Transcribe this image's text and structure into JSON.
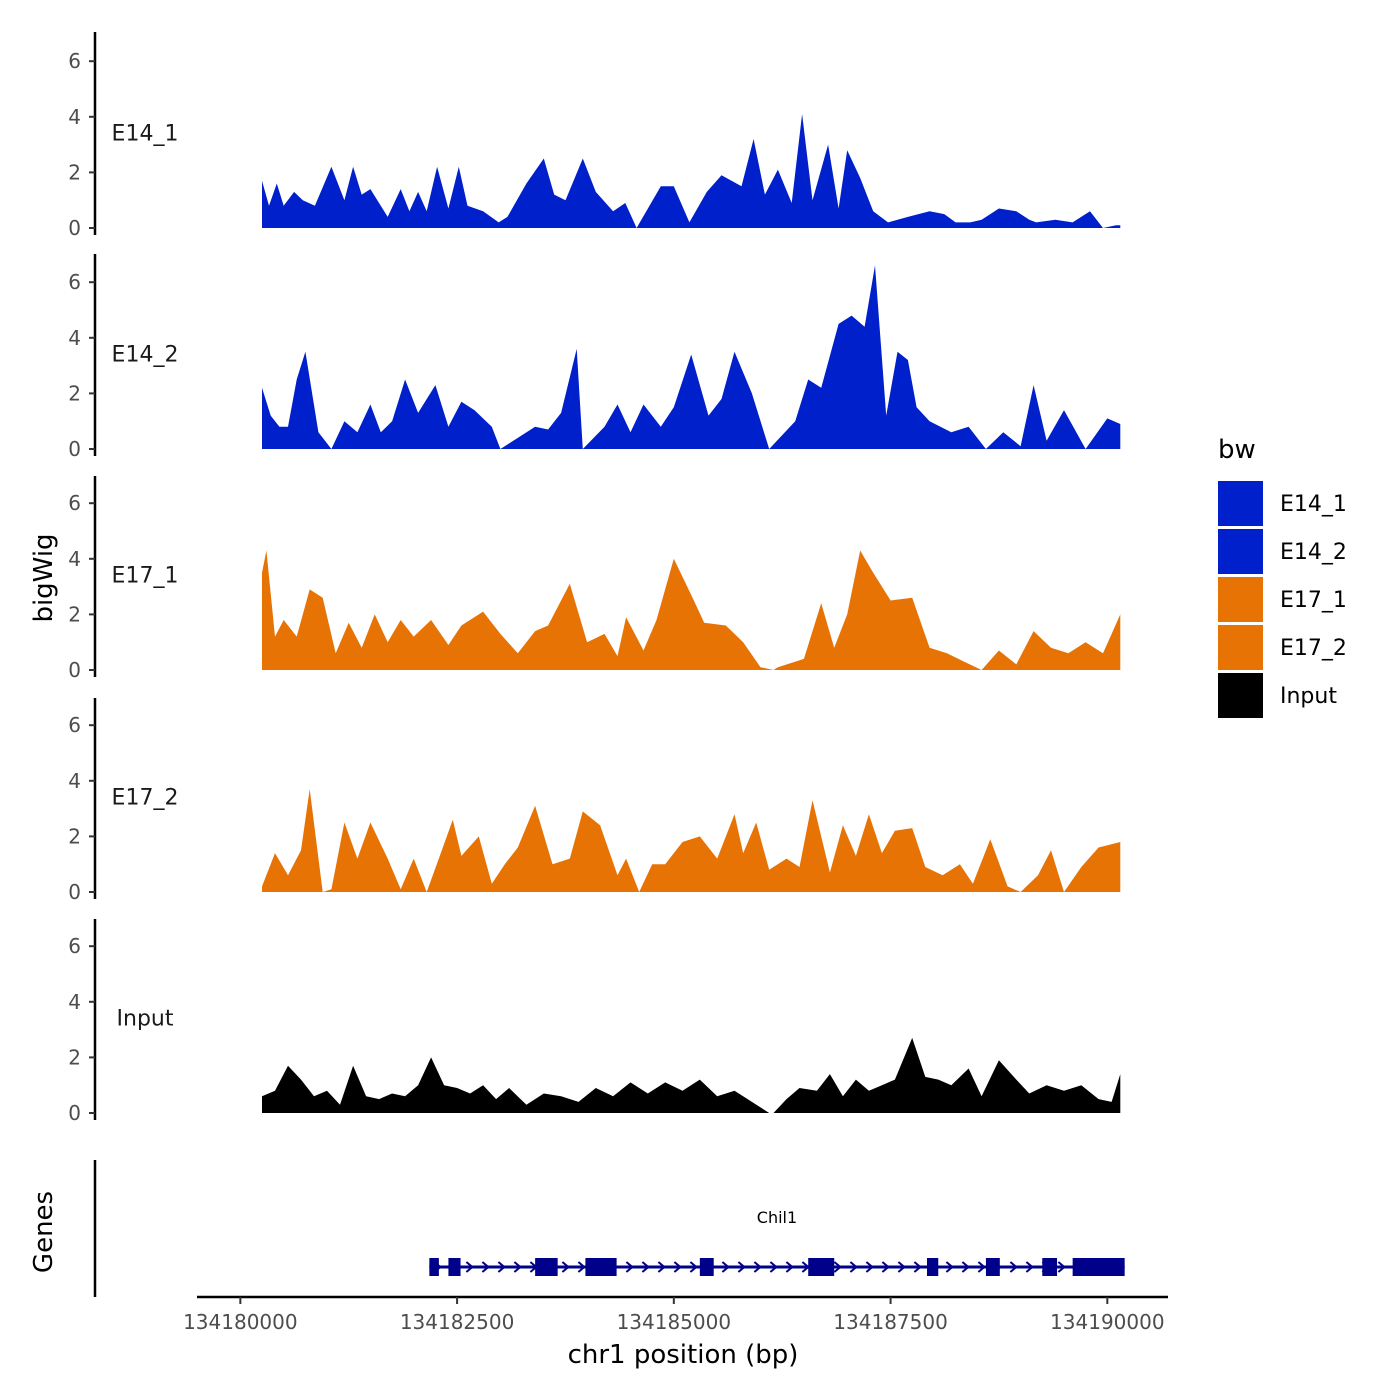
{
  "chart_data": {
    "type": "area",
    "chromosome": "chr1",
    "xlabel": "chr1 position (bp)",
    "ylabel": "bigWig",
    "genes_label": "Genes",
    "xlim": [
      134179500,
      134190700
    ],
    "ylim": [
      0,
      7
    ],
    "x_ticks": [
      "134180000",
      "134182500",
      "134185000",
      "134187500",
      "134190000"
    ],
    "y_ticks": [
      "0",
      "2",
      "4",
      "6"
    ],
    "legend": {
      "title": "bw",
      "items": [
        {
          "label": "E14_1",
          "color": "#0020CC"
        },
        {
          "label": "E14_2",
          "color": "#0020CC"
        },
        {
          "label": "E17_1",
          "color": "#E87305"
        },
        {
          "label": "E17_2",
          "color": "#E87305"
        },
        {
          "label": "Input",
          "color": "#000000"
        }
      ]
    },
    "series": [
      {
        "name": "E14_1",
        "color": "#0020CC",
        "x": [
          134180250,
          134180330,
          134180420,
          134180500,
          134180620,
          134180720,
          134180860,
          134181050,
          134181200,
          134181300,
          134181400,
          134181500,
          134181700,
          134181850,
          134181950,
          134182050,
          134182150,
          134182270,
          134182400,
          134182520,
          134182620,
          134182800,
          134182980,
          134183080,
          134183300,
          134183500,
          134183620,
          134183750,
          134183950,
          134184100,
          134184300,
          134184440,
          134184570,
          134184850,
          134185000,
          134185180,
          134185380,
          134185550,
          134185780,
          134185920,
          134186050,
          134186200,
          134186360,
          134186480,
          134186600,
          134186780,
          134186900,
          134187000,
          134187150,
          134187300,
          134187470,
          134187700,
          134187950,
          134188120,
          134188250,
          134188420,
          134188550,
          134188750,
          134188950,
          134189100,
          134189180,
          134189400,
          134189600,
          134189800,
          134189950,
          134190100,
          134190150
        ],
        "values": [
          1.7,
          0.8,
          1.6,
          0.8,
          1.3,
          1.0,
          0.8,
          2.2,
          1.0,
          2.2,
          1.2,
          1.4,
          0.4,
          1.4,
          0.6,
          1.3,
          0.6,
          2.2,
          0.7,
          2.2,
          0.8,
          0.6,
          0.2,
          0.4,
          1.6,
          2.5,
          1.2,
          1.0,
          2.5,
          1.3,
          0.6,
          0.9,
          0.0,
          1.5,
          1.5,
          0.2,
          1.3,
          1.9,
          1.5,
          3.2,
          1.2,
          2.1,
          0.9,
          4.1,
          1.0,
          3.0,
          0.7,
          2.8,
          1.8,
          0.6,
          0.2,
          0.4,
          0.6,
          0.5,
          0.2,
          0.2,
          0.3,
          0.7,
          0.6,
          0.3,
          0.2,
          0.3,
          0.2,
          0.6,
          0.0,
          0.1,
          0.1
        ]
      },
      {
        "name": "E14_2",
        "color": "#0020CC",
        "x": [
          134180250,
          134180350,
          134180450,
          134180550,
          134180650,
          134180750,
          134180900,
          134181050,
          134181200,
          134181350,
          134181500,
          134181620,
          134181750,
          134181900,
          134182050,
          134182250,
          134182400,
          134182550,
          134182700,
          134182900,
          134183000,
          134183200,
          134183400,
          134183550,
          134183700,
          134183880,
          134183950,
          134184200,
          134184350,
          134184500,
          134184650,
          134184850,
          134185000,
          134185200,
          134185400,
          134185550,
          134185700,
          134185900,
          134186100,
          134186400,
          134186550,
          134186700,
          134186900,
          134187050,
          134187200,
          134187320,
          134187450,
          134187580,
          134187700,
          134187800,
          134187950,
          134188200,
          134188400,
          134188600,
          134188800,
          134189000,
          134189150,
          134189300,
          134189500,
          134189750,
          134190000,
          134190150
        ],
        "values": [
          2.2,
          1.2,
          0.8,
          0.8,
          2.5,
          3.5,
          0.6,
          0.0,
          1.0,
          0.6,
          1.6,
          0.6,
          1.0,
          2.5,
          1.3,
          2.3,
          0.8,
          1.7,
          1.4,
          0.8,
          0.0,
          0.4,
          0.8,
          0.7,
          1.3,
          3.6,
          0.0,
          0.8,
          1.6,
          0.6,
          1.6,
          0.8,
          1.5,
          3.4,
          1.2,
          1.8,
          3.5,
          2.0,
          0.0,
          1.0,
          2.5,
          2.2,
          4.5,
          4.8,
          4.4,
          6.6,
          1.2,
          3.5,
          3.2,
          1.5,
          1.0,
          0.6,
          0.8,
          0.0,
          0.6,
          0.1,
          2.3,
          0.3,
          1.4,
          0.0,
          1.1,
          0.9
        ]
      },
      {
        "name": "E17_1",
        "color": "#E87305",
        "x": [
          134180250,
          134180300,
          134180400,
          134180500,
          134180650,
          134180800,
          134180950,
          134181100,
          134181250,
          134181400,
          134181550,
          134181700,
          134181850,
          134182000,
          134182200,
          134182400,
          134182550,
          134182800,
          134183000,
          134183200,
          134183400,
          134183550,
          134183800,
          134184000,
          134184200,
          134184350,
          134184450,
          134184650,
          134184800,
          134185000,
          134185200,
          134185350,
          134185600,
          134185800,
          134186000,
          134186150,
          134186200,
          134186500,
          134186700,
          134186850,
          134187000,
          134187150,
          134187300,
          134187500,
          134187750,
          134187950,
          134188150,
          134188350,
          134188550,
          134188750,
          134188950,
          134189150,
          134189350,
          134189550,
          134189750,
          134189950,
          134190150
        ],
        "values": [
          3.5,
          4.3,
          1.2,
          1.8,
          1.2,
          2.9,
          2.6,
          0.6,
          1.7,
          0.8,
          2.0,
          1.0,
          1.8,
          1.2,
          1.8,
          0.9,
          1.6,
          2.1,
          1.3,
          0.6,
          1.4,
          1.6,
          3.1,
          1.0,
          1.3,
          0.5,
          1.9,
          0.7,
          1.8,
          4.0,
          2.7,
          1.7,
          1.6,
          1.0,
          0.1,
          0.0,
          0.1,
          0.4,
          2.4,
          0.8,
          2.0,
          4.3,
          3.5,
          2.5,
          2.6,
          0.8,
          0.6,
          0.3,
          0.0,
          0.7,
          0.2,
          1.4,
          0.8,
          0.6,
          1.0,
          0.6,
          2.0
        ]
      },
      {
        "name": "E17_2",
        "color": "#E87305",
        "x": [
          134180250,
          134180400,
          134180550,
          134180700,
          134180800,
          134180950,
          134181050,
          134181200,
          134181350,
          134181500,
          134181700,
          134181850,
          134182000,
          134182150,
          134182300,
          134182450,
          134182550,
          134182750,
          134182900,
          134183050,
          134183200,
          134183400,
          134183600,
          134183800,
          134183950,
          134184150,
          134184350,
          134184450,
          134184600,
          134184750,
          134184900,
          134185100,
          134185300,
          134185500,
          134185700,
          134185800,
          134185950,
          134186100,
          134186300,
          134186450,
          134186600,
          134186800,
          134186950,
          134187100,
          134187250,
          134187400,
          134187550,
          134187750,
          134187900,
          134188100,
          134188300,
          134188450,
          134188650,
          134188850,
          134189000,
          134189200,
          134189350,
          134189500,
          134189700,
          134189900,
          134190150
        ],
        "values": [
          0.2,
          1.4,
          0.6,
          1.5,
          3.7,
          0.0,
          0.1,
          2.5,
          1.2,
          2.5,
          1.2,
          0.1,
          1.2,
          0.0,
          1.3,
          2.6,
          1.3,
          2.0,
          0.3,
          1.0,
          1.6,
          3.1,
          1.0,
          1.2,
          2.9,
          2.4,
          0.6,
          1.2,
          0.0,
          1.0,
          1.0,
          1.8,
          2.0,
          1.2,
          2.8,
          1.4,
          2.5,
          0.8,
          1.2,
          0.9,
          3.3,
          0.7,
          2.4,
          1.3,
          2.8,
          1.4,
          2.2,
          2.3,
          0.9,
          0.6,
          1.0,
          0.3,
          1.9,
          0.2,
          0.0,
          0.6,
          1.5,
          0.0,
          0.9,
          1.6,
          1.8
        ]
      },
      {
        "name": "Input",
        "color": "#000000",
        "x": [
          134180250,
          134180400,
          134180550,
          134180700,
          134180850,
          134181000,
          134181150,
          134181300,
          134181450,
          134181600,
          134181750,
          134181900,
          134182050,
          134182200,
          134182350,
          134182500,
          134182650,
          134182800,
          134182950,
          134183100,
          134183300,
          134183500,
          134183700,
          134183900,
          134184100,
          134184300,
          134184500,
          134184700,
          134184900,
          134185100,
          134185300,
          134185500,
          134185700,
          134185900,
          134186100,
          134186150,
          134186300,
          134186450,
          134186650,
          134186800,
          134186950,
          134187100,
          134187250,
          134187400,
          134187550,
          134187750,
          134187900,
          134188050,
          134188200,
          134188400,
          134188550,
          134188750,
          134188950,
          134189100,
          134189300,
          134189500,
          134189700,
          134189900,
          134190050,
          134190150
        ],
        "values": [
          0.6,
          0.8,
          1.7,
          1.2,
          0.6,
          0.8,
          0.3,
          1.7,
          0.6,
          0.5,
          0.7,
          0.6,
          1.0,
          2.0,
          1.0,
          0.9,
          0.7,
          1.0,
          0.5,
          0.9,
          0.3,
          0.7,
          0.6,
          0.4,
          0.9,
          0.6,
          1.1,
          0.7,
          1.1,
          0.8,
          1.2,
          0.6,
          0.8,
          0.4,
          0.0,
          0.0,
          0.5,
          0.9,
          0.8,
          1.4,
          0.6,
          1.2,
          0.8,
          1.0,
          1.2,
          2.7,
          1.3,
          1.2,
          1.0,
          1.6,
          0.6,
          1.9,
          1.2,
          0.7,
          1.0,
          0.8,
          1.0,
          0.5,
          0.4,
          1.4
        ]
      }
    ],
    "genes": [
      {
        "name": "Chil1",
        "start": 134182180,
        "end": 134190200,
        "strand": "+",
        "exons": [
          [
            134182180,
            134182290
          ],
          [
            134182400,
            134182540
          ],
          [
            134183400,
            134183660
          ],
          [
            134183980,
            134184340
          ],
          [
            134185300,
            134185460
          ],
          [
            134186550,
            134186850
          ],
          [
            134187920,
            134188050
          ],
          [
            134188600,
            134188760
          ],
          [
            134189250,
            134189420
          ],
          [
            134189600,
            134190200
          ]
        ]
      }
    ]
  }
}
